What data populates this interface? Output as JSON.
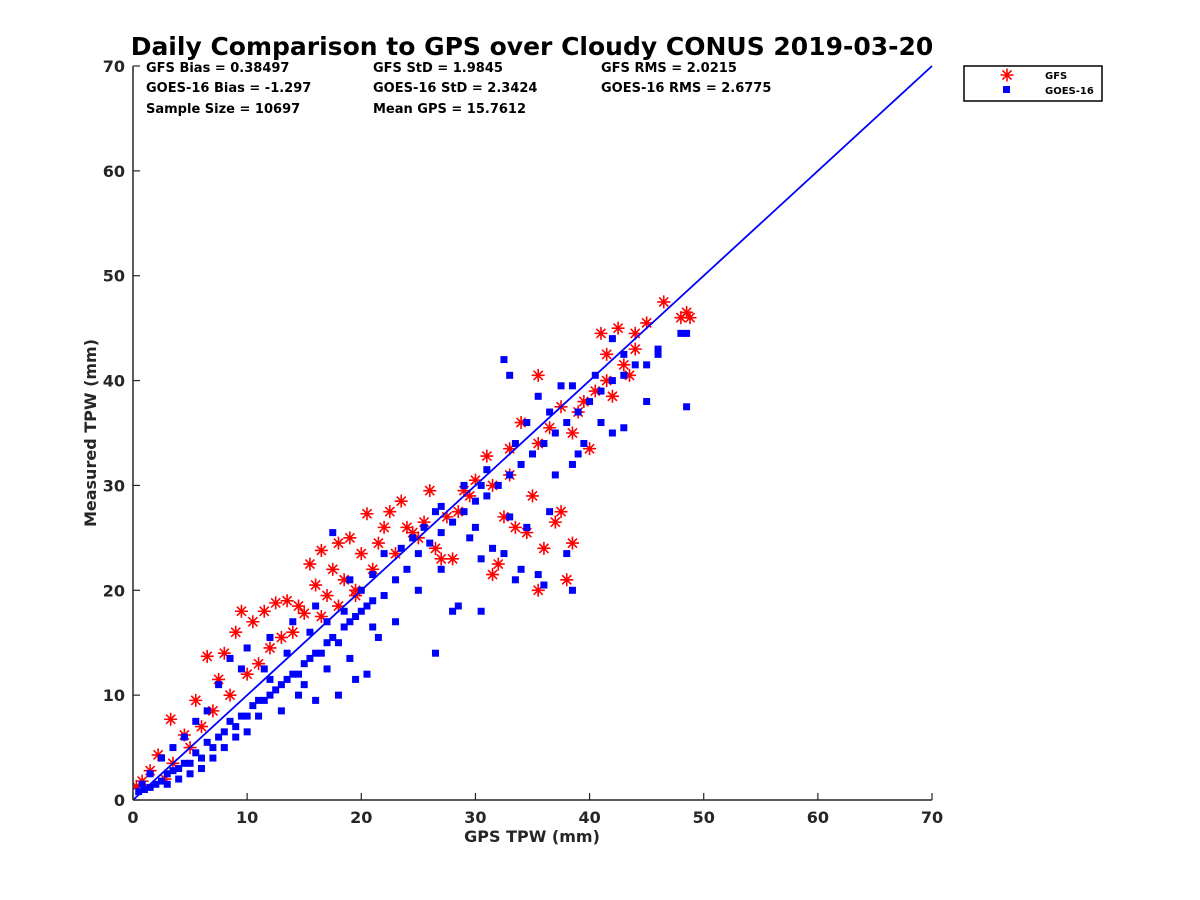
{
  "chart_data": {
    "type": "scatter",
    "title": "Daily Comparison to GPS over Cloudy CONUS 2019-03-20",
    "xlabel": "GPS TPW (mm)",
    "ylabel": "Measured TPW (mm)",
    "xlim": [
      0,
      70
    ],
    "ylim": [
      0,
      70
    ],
    "xticks": [
      "0",
      "10",
      "20",
      "30",
      "40",
      "50",
      "60",
      "70"
    ],
    "yticks": [
      "0",
      "10",
      "20",
      "30",
      "40",
      "50",
      "60",
      "70"
    ],
    "grid": false,
    "legend_position": "outside top-right",
    "stats": [
      "GFS Bias = 0.38497",
      "GFS StD = 1.9845",
      "GFS RMS = 2.0215",
      "GOES-16 Bias = -1.297",
      "GOES-16 StD = 2.3424",
      "GOES-16 RMS = 2.6775",
      "Sample Size = 10697",
      "Mean GPS = 15.7612"
    ],
    "reference_line": {
      "x": [
        0,
        70
      ],
      "y": [
        0,
        70
      ],
      "color": "#0000ff"
    },
    "series": [
      {
        "name": "GFS",
        "marker": "asterisk",
        "color": "#ff0000",
        "points": [
          [
            0.3,
            1.3
          ],
          [
            0.8,
            1.8
          ],
          [
            1.5,
            2.8
          ],
          [
            2.2,
            4.3
          ],
          [
            3.3,
            7.7
          ],
          [
            4.5,
            6.2
          ],
          [
            5.5,
            9.5
          ],
          [
            6.5,
            13.7
          ],
          [
            7.5,
            11.5
          ],
          [
            8.0,
            14.0
          ],
          [
            9.0,
            16.0
          ],
          [
            9.5,
            18.0
          ],
          [
            10.5,
            17.0
          ],
          [
            11.5,
            18.0
          ],
          [
            12.5,
            18.8
          ],
          [
            13.5,
            19.0
          ],
          [
            14.5,
            18.5
          ],
          [
            15.0,
            17.8
          ],
          [
            15.5,
            22.5
          ],
          [
            16.0,
            20.5
          ],
          [
            16.5,
            23.8
          ],
          [
            17.0,
            19.5
          ],
          [
            17.5,
            22.0
          ],
          [
            18.0,
            24.5
          ],
          [
            18.5,
            21.0
          ],
          [
            19.0,
            25.0
          ],
          [
            19.5,
            20.0
          ],
          [
            20.0,
            23.5
          ],
          [
            20.5,
            27.3
          ],
          [
            21.5,
            24.5
          ],
          [
            22.0,
            26.0
          ],
          [
            22.5,
            27.5
          ],
          [
            23.5,
            28.5
          ],
          [
            24.0,
            26.0
          ],
          [
            24.5,
            25.5
          ],
          [
            25.5,
            26.5
          ],
          [
            26.0,
            29.5
          ],
          [
            26.5,
            24.0
          ],
          [
            27.0,
            23.0
          ],
          [
            28.0,
            23.0
          ],
          [
            28.5,
            27.5
          ],
          [
            29.0,
            29.5
          ],
          [
            30.0,
            30.5
          ],
          [
            31.0,
            32.8
          ],
          [
            31.5,
            21.5
          ],
          [
            32.0,
            22.5
          ],
          [
            32.5,
            27.0
          ],
          [
            33.0,
            33.5
          ],
          [
            33.5,
            26.0
          ],
          [
            34.0,
            36.0
          ],
          [
            34.5,
            25.5
          ],
          [
            35.0,
            29.0
          ],
          [
            35.5,
            40.5
          ],
          [
            35.5,
            20.0
          ],
          [
            36.0,
            24.0
          ],
          [
            36.5,
            35.5
          ],
          [
            37.0,
            26.5
          ],
          [
            37.5,
            27.5
          ],
          [
            38.0,
            21.0
          ],
          [
            38.5,
            24.5
          ],
          [
            38.5,
            35.0
          ],
          [
            39.0,
            37.0
          ],
          [
            40.0,
            33.5
          ],
          [
            40.5,
            39.0
          ],
          [
            41.0,
            44.5
          ],
          [
            41.5,
            42.5
          ],
          [
            42.0,
            38.5
          ],
          [
            42.5,
            45.0
          ],
          [
            43.0,
            41.5
          ],
          [
            43.5,
            40.5
          ],
          [
            44.0,
            44.5
          ],
          [
            45.0,
            45.5
          ],
          [
            46.5,
            47.5
          ],
          [
            48.0,
            46.0
          ],
          [
            48.5,
            46.5
          ],
          [
            48.8,
            46.0
          ],
          [
            2.8,
            2.0
          ],
          [
            3.5,
            3.5
          ],
          [
            5.0,
            5.0
          ],
          [
            6.0,
            7.0
          ],
          [
            7.0,
            8.5
          ],
          [
            8.5,
            10.0
          ],
          [
            10.0,
            12.0
          ],
          [
            11.0,
            13.0
          ],
          [
            12.0,
            14.5
          ],
          [
            13.0,
            15.5
          ],
          [
            14.0,
            16.0
          ],
          [
            16.5,
            17.5
          ],
          [
            18.0,
            18.5
          ],
          [
            19.5,
            19.5
          ],
          [
            21.0,
            22.0
          ],
          [
            23.0,
            23.5
          ],
          [
            25.0,
            25.0
          ],
          [
            27.5,
            27.0
          ],
          [
            29.5,
            29.0
          ],
          [
            31.5,
            30.0
          ],
          [
            33.0,
            31.0
          ],
          [
            35.5,
            34.0
          ],
          [
            37.5,
            37.5
          ],
          [
            39.5,
            38.0
          ],
          [
            41.5,
            40.0
          ],
          [
            44.0,
            43.0
          ]
        ]
      },
      {
        "name": "GOES-16",
        "marker": "square",
        "color": "#0000ff",
        "points": [
          [
            0.5,
            0.8
          ],
          [
            1.0,
            1.0
          ],
          [
            1.5,
            1.2
          ],
          [
            2.0,
            1.5
          ],
          [
            2.5,
            1.8
          ],
          [
            3.0,
            2.5
          ],
          [
            3.5,
            2.8
          ],
          [
            4.0,
            3.0
          ],
          [
            4.5,
            3.5
          ],
          [
            5.0,
            3.5
          ],
          [
            5.5,
            4.5
          ],
          [
            6.0,
            4.0
          ],
          [
            6.5,
            5.5
          ],
          [
            7.0,
            5.0
          ],
          [
            7.5,
            6.0
          ],
          [
            8.0,
            6.5
          ],
          [
            8.5,
            7.5
          ],
          [
            9.0,
            7.0
          ],
          [
            9.5,
            8.0
          ],
          [
            10.0,
            8.0
          ],
          [
            10.5,
            9.0
          ],
          [
            11.0,
            9.5
          ],
          [
            11.5,
            9.5
          ],
          [
            12.0,
            10.0
          ],
          [
            12.5,
            10.5
          ],
          [
            13.0,
            11.0
          ],
          [
            13.5,
            11.5
          ],
          [
            14.0,
            12.0
          ],
          [
            14.5,
            12.0
          ],
          [
            15.0,
            13.0
          ],
          [
            15.5,
            13.5
          ],
          [
            16.0,
            14.0
          ],
          [
            16.5,
            14.0
          ],
          [
            17.0,
            15.0
          ],
          [
            17.5,
            15.5
          ],
          [
            18.0,
            15.0
          ],
          [
            18.5,
            16.5
          ],
          [
            19.0,
            17.0
          ],
          [
            19.5,
            17.5
          ],
          [
            20.0,
            18.0
          ],
          [
            20.5,
            18.5
          ],
          [
            21.0,
            19.0
          ],
          [
            22.0,
            19.5
          ],
          [
            23.0,
            21.0
          ],
          [
            24.0,
            22.0
          ],
          [
            25.0,
            23.5
          ],
          [
            26.0,
            24.5
          ],
          [
            27.0,
            25.5
          ],
          [
            28.0,
            26.5
          ],
          [
            29.0,
            27.5
          ],
          [
            30.0,
            28.5
          ],
          [
            31.0,
            29.0
          ],
          [
            32.0,
            30.0
          ],
          [
            33.0,
            31.0
          ],
          [
            34.0,
            32.0
          ],
          [
            35.0,
            33.0
          ],
          [
            36.0,
            34.0
          ],
          [
            37.0,
            35.0
          ],
          [
            38.0,
            36.0
          ],
          [
            39.0,
            37.0
          ],
          [
            40.0,
            38.0
          ],
          [
            41.0,
            39.0
          ],
          [
            42.0,
            40.0
          ],
          [
            43.0,
            40.5
          ],
          [
            44.0,
            41.5
          ],
          [
            45.0,
            41.5
          ],
          [
            46.0,
            42.5
          ],
          [
            48.0,
            44.5
          ],
          [
            48.5,
            44.5
          ],
          [
            48.5,
            37.5
          ],
          [
            45.0,
            38.0
          ],
          [
            43.0,
            35.5
          ],
          [
            42.0,
            35.0
          ],
          [
            41.0,
            36.0
          ],
          [
            39.0,
            33.0
          ],
          [
            38.5,
            32.0
          ],
          [
            38.0,
            23.5
          ],
          [
            38.5,
            20.0
          ],
          [
            36.0,
            20.5
          ],
          [
            35.5,
            21.5
          ],
          [
            34.0,
            22.0
          ],
          [
            33.5,
            21.0
          ],
          [
            32.5,
            23.5
          ],
          [
            31.5,
            24.0
          ],
          [
            30.5,
            23.0
          ],
          [
            29.5,
            25.0
          ],
          [
            28.0,
            18.0
          ],
          [
            28.5,
            18.5
          ],
          [
            30.5,
            18.0
          ],
          [
            26.5,
            14.0
          ],
          [
            21.5,
            15.5
          ],
          [
            20.5,
            12.0
          ],
          [
            19.5,
            11.5
          ],
          [
            18.0,
            10.0
          ],
          [
            16.0,
            9.5
          ],
          [
            14.5,
            10.0
          ],
          [
            13.0,
            8.5
          ],
          [
            11.0,
            8.0
          ],
          [
            10.0,
            6.5
          ],
          [
            9.0,
            6.0
          ],
          [
            8.0,
            5.0
          ],
          [
            7.0,
            4.0
          ],
          [
            6.0,
            3.0
          ],
          [
            5.0,
            2.5
          ],
          [
            4.0,
            2.0
          ],
          [
            3.0,
            1.5
          ],
          [
            8.5,
            13.5
          ],
          [
            10.0,
            14.5
          ],
          [
            12.0,
            15.5
          ],
          [
            14.0,
            17.0
          ],
          [
            16.0,
            18.5
          ],
          [
            17.5,
            25.5
          ],
          [
            19.0,
            21.0
          ],
          [
            22.0,
            23.5
          ],
          [
            24.5,
            25.0
          ],
          [
            26.5,
            27.5
          ],
          [
            30.5,
            30.0
          ],
          [
            32.5,
            42.0
          ],
          [
            33.0,
            40.5
          ],
          [
            35.5,
            38.5
          ],
          [
            37.5,
            39.5
          ],
          [
            38.5,
            39.5
          ],
          [
            40.5,
            40.5
          ],
          [
            42.0,
            44.0
          ],
          [
            43.0,
            42.5
          ],
          [
            46.0,
            43.0
          ],
          [
            7.5,
            11.0
          ],
          [
            9.5,
            12.5
          ],
          [
            11.5,
            12.5
          ],
          [
            13.5,
            14.0
          ],
          [
            15.5,
            16.0
          ],
          [
            17.0,
            17.0
          ],
          [
            18.5,
            18.0
          ],
          [
            20.0,
            20.0
          ],
          [
            21.0,
            21.5
          ],
          [
            23.5,
            24.0
          ],
          [
            25.5,
            26.0
          ],
          [
            27.0,
            28.0
          ],
          [
            29.0,
            30.0
          ],
          [
            31.0,
            31.5
          ],
          [
            33.5,
            34.0
          ],
          [
            34.5,
            36.0
          ],
          [
            36.5,
            37.0
          ],
          [
            6.5,
            8.5
          ],
          [
            5.5,
            7.5
          ],
          [
            4.5,
            6.0
          ],
          [
            3.5,
            5.0
          ],
          [
            2.5,
            4.0
          ],
          [
            1.5,
            2.5
          ],
          [
            0.8,
            1.5
          ],
          [
            12.0,
            11.5
          ],
          [
            15.0,
            11.0
          ],
          [
            17.0,
            12.5
          ],
          [
            19.0,
            13.5
          ],
          [
            21.0,
            16.5
          ],
          [
            23.0,
            17.0
          ],
          [
            25.0,
            20.0
          ],
          [
            27.0,
            22.0
          ],
          [
            30.0,
            26.0
          ],
          [
            33.0,
            27.0
          ],
          [
            34.5,
            26.0
          ],
          [
            36.5,
            27.5
          ],
          [
            37.0,
            31.0
          ],
          [
            39.5,
            34.0
          ]
        ]
      }
    ]
  }
}
